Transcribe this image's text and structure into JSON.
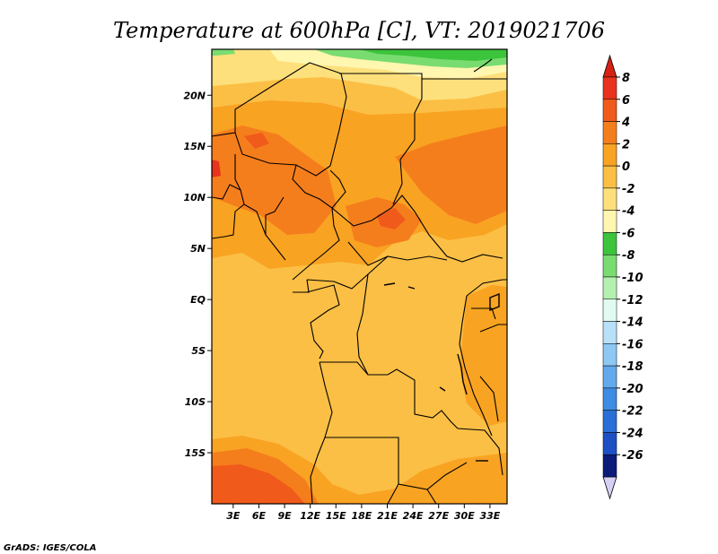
{
  "title": "Temperature at 600hPa [C], VT: 2019021706",
  "credit": "GrADS: IGES/COLA",
  "map": {
    "lon_min": 0.5,
    "lon_max": 35,
    "lat_min": -20,
    "lat_max": 24.5,
    "lat_ticks": [
      {
        "value": 20,
        "label": "20N"
      },
      {
        "value": 15,
        "label": "15N"
      },
      {
        "value": 10,
        "label": "10N"
      },
      {
        "value": 5,
        "label": "5N"
      },
      {
        "value": 0,
        "label": "EQ"
      },
      {
        "value": -5,
        "label": "5S"
      },
      {
        "value": -10,
        "label": "10S"
      },
      {
        "value": -15,
        "label": "15S"
      }
    ],
    "lon_ticks": [
      {
        "value": 3,
        "label": "3E"
      },
      {
        "value": 6,
        "label": "6E"
      },
      {
        "value": 9,
        "label": "9E"
      },
      {
        "value": 12,
        "label": "12E"
      },
      {
        "value": 15,
        "label": "15E"
      },
      {
        "value": 18,
        "label": "18E"
      },
      {
        "value": 21,
        "label": "21E"
      },
      {
        "value": 24,
        "label": "24E"
      },
      {
        "value": 27,
        "label": "27E"
      },
      {
        "value": 30,
        "label": "30E"
      },
      {
        "value": 33,
        "label": "33E"
      }
    ]
  },
  "colorbar": {
    "levels": [
      {
        "label": "8",
        "color": "#e8321c"
      },
      {
        "label": "6",
        "color": "#f05a1a"
      },
      {
        "label": "4",
        "color": "#f57e1c"
      },
      {
        "label": "2",
        "color": "#f9a322"
      },
      {
        "label": "0",
        "color": "#fbbf45"
      },
      {
        "label": "-2",
        "color": "#fde07c"
      },
      {
        "label": "-4",
        "color": "#fff6b0"
      },
      {
        "label": "-6",
        "color": "#3cc43c"
      },
      {
        "label": "-8",
        "color": "#79dc70"
      },
      {
        "label": "-10",
        "color": "#b4f0b0"
      },
      {
        "label": "-12",
        "color": "#e2fbf2"
      },
      {
        "label": "-14",
        "color": "#b8e0f8"
      },
      {
        "label": "-16",
        "color": "#8ec8f4"
      },
      {
        "label": "-18",
        "color": "#62aaee"
      },
      {
        "label": "-20",
        "color": "#3f8ce4"
      },
      {
        "label": "-22",
        "color": "#2a6ed8"
      },
      {
        "label": "-24",
        "color": "#1c50c4"
      },
      {
        "label": "-26",
        "color": "#0c1a7a"
      }
    ],
    "under_color": "#d6d0f4",
    "over_color": "#d62014"
  },
  "colors": {
    "warm_8": "#e8321c",
    "warm_6": "#f05a1a",
    "warm_4": "#f57e1c",
    "warm_2": "#f9a322",
    "warm_0": "#fbbf45",
    "cool_m2": "#fde07c",
    "cool_m4": "#fff6b0",
    "green_m6": "#3cc43c",
    "green_m8": "#79dc70"
  }
}
